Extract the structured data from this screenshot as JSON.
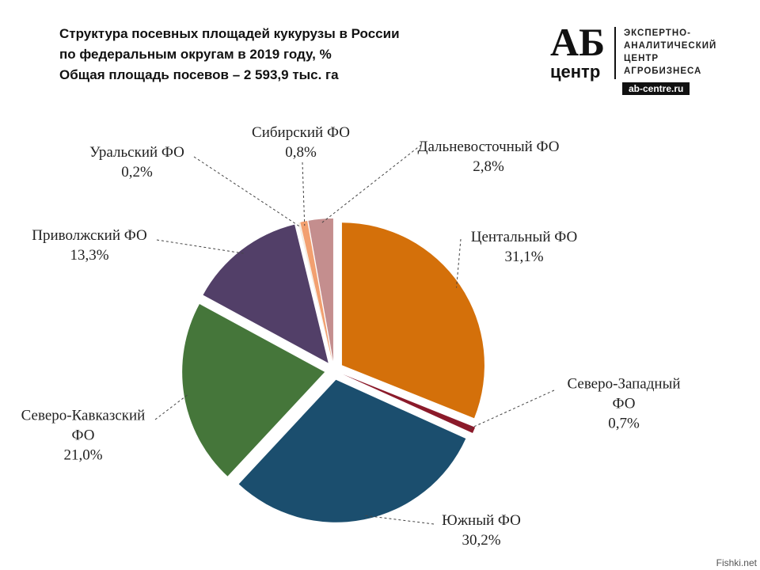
{
  "chart_data": {
    "type": "pie",
    "title": [
      "Структура посевных площадей кукурузы в России",
      "по федеральным округам в 2019 году, %",
      "Общая площадь посевов – 2 593,9 тыс. га"
    ],
    "categories": [
      "Центальный ФО",
      "Северо-Западный ФО",
      "Южный ФО",
      "Северо-Кавказский ФО",
      "Приволжский ФО",
      "Уральский ФО",
      "Сибирский ФО",
      "Дальневосточный ФО"
    ],
    "values": [
      31.1,
      0.7,
      30.2,
      21.0,
      13.3,
      0.2,
      0.8,
      2.8
    ],
    "value_labels": [
      "31,1%",
      "0,7%",
      "30,2%",
      "21,0%",
      "13,3%",
      "0,2%",
      "0,8%",
      "2,8%"
    ],
    "colors": [
      "#d4700a",
      "#8b1a2a",
      "#1b4e6e",
      "#45763a",
      "#523f68",
      "#f3ede2",
      "#f2a070",
      "#c48e8e"
    ]
  },
  "logo": {
    "mark": "АБ",
    "sub": "центр",
    "lines": [
      "ЭКСПЕРТНО-",
      "АНАЛИТИЧЕСКИЙ",
      "ЦЕНТР",
      "АГРОБИЗНЕСА"
    ],
    "site": "ab-centre.ru"
  },
  "watermark": "Fishki.net"
}
